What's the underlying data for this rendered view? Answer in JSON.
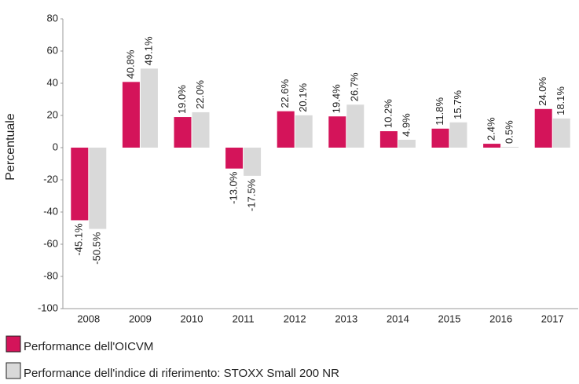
{
  "chart_data": {
    "type": "bar",
    "ylabel": "Percentuale",
    "categories": [
      "2008",
      "2009",
      "2010",
      "2011",
      "2012",
      "2013",
      "2014",
      "2015",
      "2016",
      "2017"
    ],
    "series": [
      {
        "name": "Performance dell'OICVM",
        "color": "#d4145a",
        "values": [
          -45.1,
          40.8,
          19.0,
          -13.0,
          22.6,
          19.4,
          10.2,
          11.8,
          2.4,
          24.0
        ],
        "value_labels": [
          "-45.1%",
          "40.8%",
          "19.0%",
          "-13.0%",
          "22.6%",
          "19.4%",
          "10.2%",
          "11.8%",
          "2.4%",
          "24.0%"
        ]
      },
      {
        "name": "Performance dell'indice di riferimento: STOXX Small 200 NR",
        "color": "#d9d9d9",
        "values": [
          -50.5,
          49.1,
          22.0,
          -17.5,
          20.1,
          26.7,
          4.9,
          15.7,
          0.5,
          18.1
        ],
        "value_labels": [
          "-50.5%",
          "49.1%",
          "22.0%",
          "-17.5%",
          "20.1%",
          "26.7%",
          "4.9%",
          "15.7%",
          "0.5%",
          "18.1%"
        ]
      }
    ],
    "ylim": [
      -100,
      80
    ],
    "yticks": [
      -100,
      -80,
      -60,
      -40,
      -20,
      0,
      20,
      40,
      60,
      80
    ],
    "grid": false
  }
}
